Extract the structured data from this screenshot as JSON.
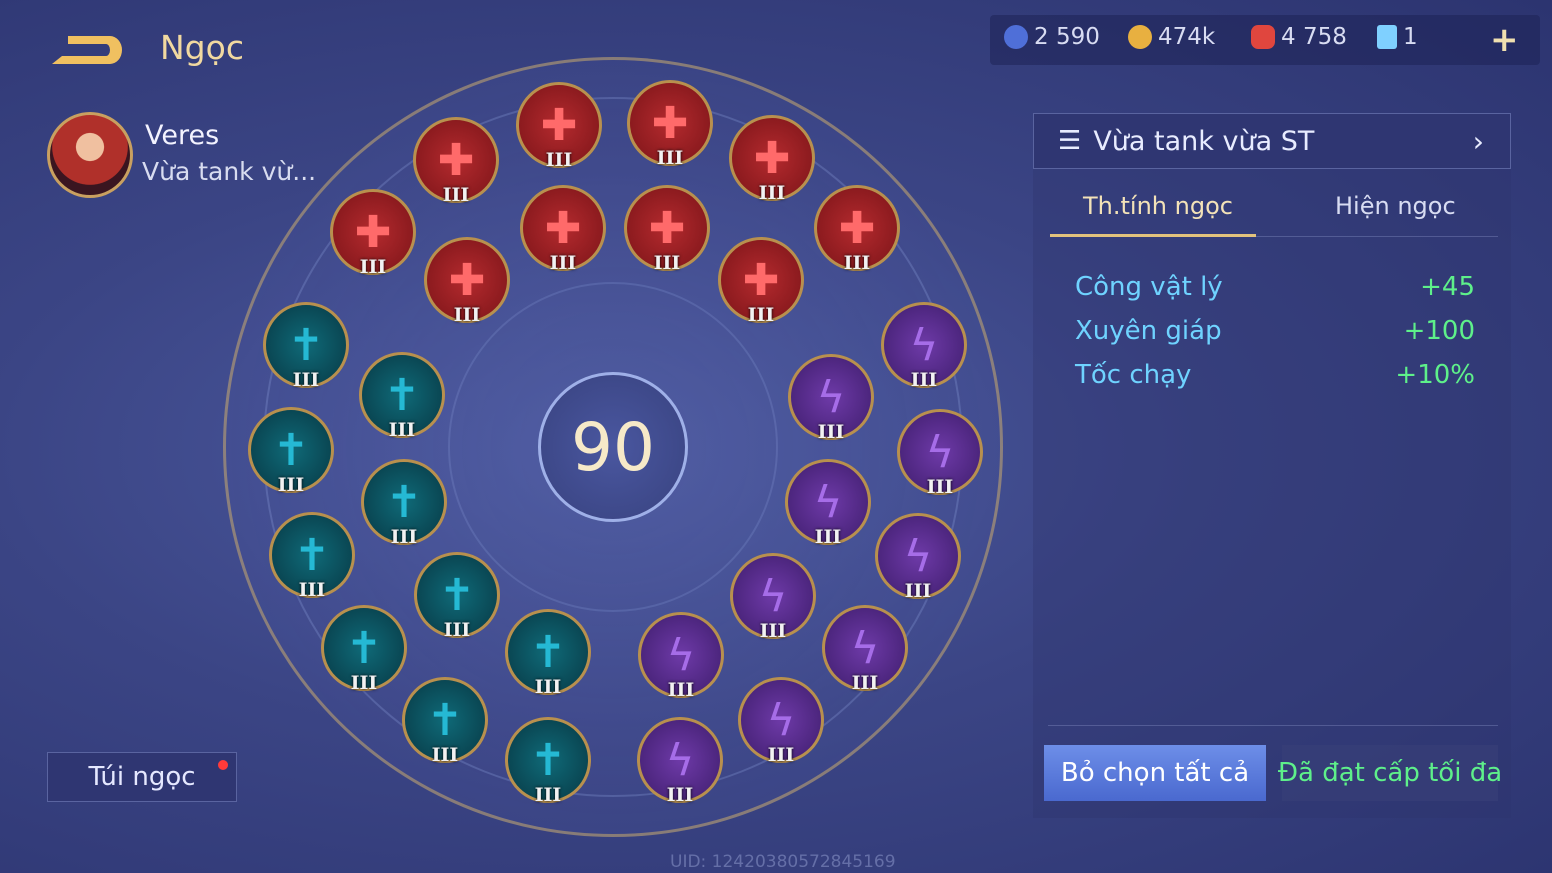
{
  "header": {
    "title": "Ngọc",
    "plus_label": "+"
  },
  "currencies": [
    {
      "icon": "blue-coin-icon",
      "value": "2 590",
      "color": "#4f6fd8"
    },
    {
      "icon": "gold-coin-icon",
      "value": "474k",
      "color": "#e8b040"
    },
    {
      "icon": "red-gem-icon",
      "value": "4 758",
      "color": "#e0463e"
    },
    {
      "icon": "card-icon",
      "value": "1",
      "color": "#7fd0ff"
    }
  ],
  "hero": {
    "name": "Veres",
    "build": "Vừa tank vừ..."
  },
  "bag": {
    "label": "Túi ngọc"
  },
  "wheel": {
    "level": "90"
  },
  "gems": {
    "tier": "III",
    "red_count": 10,
    "teal_count": 10,
    "purple_count": 10
  },
  "panel": {
    "build_name": "Vừa tank vừa ST",
    "tabs": [
      {
        "label": "Th.tính ngọc",
        "active": true
      },
      {
        "label": "Hiện ngọc",
        "active": false
      }
    ],
    "stats": [
      {
        "name": "Công vật lý",
        "value": "+45"
      },
      {
        "name": "Xuyên giáp",
        "value": "+100"
      },
      {
        "name": "Tốc chạy",
        "value": "+10%"
      }
    ],
    "deselect_label": "Bỏ chọn tất cả",
    "max_label": "Đã đạt cấp tối đa"
  },
  "uid": "UID: 124203805728451​69"
}
